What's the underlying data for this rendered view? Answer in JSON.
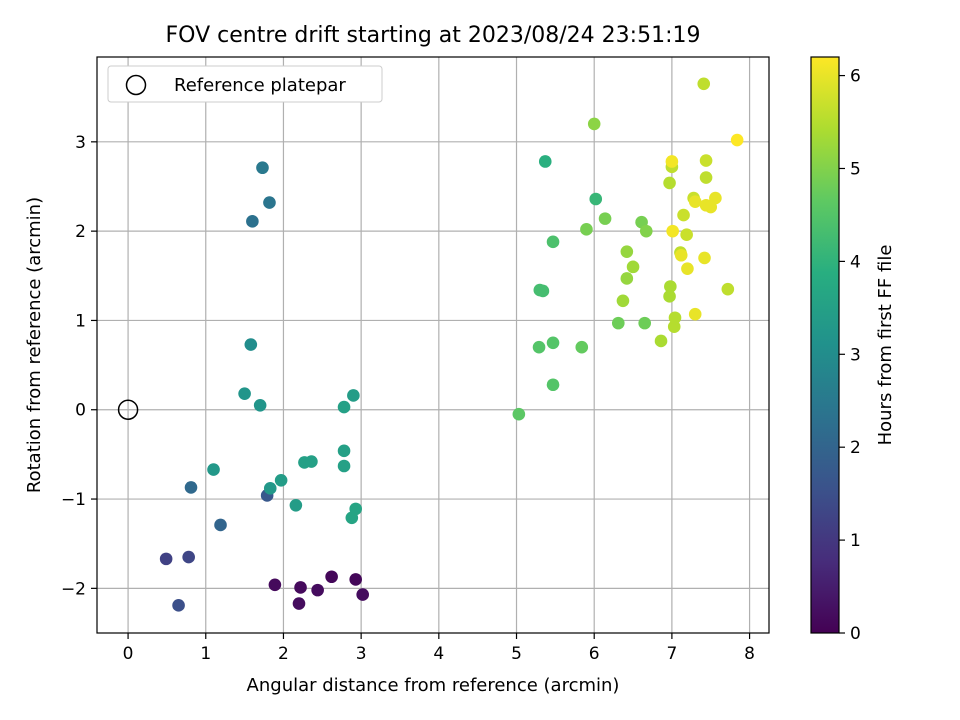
{
  "chart_data": {
    "type": "scatter",
    "title": "FOV centre drift starting at 2023/08/24 23:51:19",
    "xlabel": "Angular distance from reference (arcmin)",
    "ylabel": "Rotation from reference (arcmin)",
    "xlim": [
      -0.4,
      8.25
    ],
    "ylim": [
      -2.5,
      3.95
    ],
    "xticks": [
      0,
      1,
      2,
      3,
      4,
      5,
      6,
      7,
      8
    ],
    "yticks": [
      -2,
      -1,
      0,
      1,
      2,
      3
    ],
    "grid": true,
    "legend": {
      "placement": "top-left",
      "entries": [
        "Reference platepar"
      ]
    },
    "reference_point": {
      "x": 0,
      "y": 0
    },
    "colorbar": {
      "label": "Hours from first FF file",
      "range": [
        0,
        6.2
      ],
      "ticks": [
        0,
        1,
        2,
        3,
        4,
        5,
        6
      ],
      "colormap": "viridis"
    },
    "points": [
      {
        "x": 2.62,
        "y": -1.87,
        "c": 0.1
      },
      {
        "x": 2.93,
        "y": -1.9,
        "c": 0.1
      },
      {
        "x": 2.22,
        "y": -1.99,
        "c": 0.15
      },
      {
        "x": 1.89,
        "y": -1.96,
        "c": 0.15
      },
      {
        "x": 2.44,
        "y": -2.02,
        "c": 0.2
      },
      {
        "x": 2.2,
        "y": -2.17,
        "c": 0.2
      },
      {
        "x": 3.02,
        "y": -2.07,
        "c": 0.2
      },
      {
        "x": 0.49,
        "y": -1.67,
        "c": 1.2
      },
      {
        "x": 0.78,
        "y": -1.65,
        "c": 1.3
      },
      {
        "x": 0.65,
        "y": -2.19,
        "c": 1.5
      },
      {
        "x": 1.79,
        "y": -0.96,
        "c": 1.7
      },
      {
        "x": 1.19,
        "y": -1.29,
        "c": 2.0
      },
      {
        "x": 0.81,
        "y": -0.87,
        "c": 2.1
      },
      {
        "x": 1.6,
        "y": 2.11,
        "c": 2.3
      },
      {
        "x": 1.82,
        "y": 2.32,
        "c": 2.4
      },
      {
        "x": 1.73,
        "y": 2.71,
        "c": 2.5
      },
      {
        "x": 1.58,
        "y": 0.73,
        "c": 3.0
      },
      {
        "x": 1.5,
        "y": 0.18,
        "c": 3.2
      },
      {
        "x": 1.7,
        "y": 0.05,
        "c": 3.2
      },
      {
        "x": 1.1,
        "y": -0.67,
        "c": 3.3
      },
      {
        "x": 1.83,
        "y": -0.88,
        "c": 3.3
      },
      {
        "x": 1.97,
        "y": -0.79,
        "c": 3.4
      },
      {
        "x": 2.16,
        "y": -1.07,
        "c": 3.4
      },
      {
        "x": 2.27,
        "y": -0.59,
        "c": 3.5
      },
      {
        "x": 2.36,
        "y": -0.58,
        "c": 3.5
      },
      {
        "x": 2.78,
        "y": -0.46,
        "c": 3.5
      },
      {
        "x": 2.78,
        "y": -0.63,
        "c": 3.5
      },
      {
        "x": 2.88,
        "y": -1.21,
        "c": 3.6
      },
      {
        "x": 2.93,
        "y": -1.11,
        "c": 3.6
      },
      {
        "x": 2.78,
        "y": 0.03,
        "c": 3.5
      },
      {
        "x": 2.9,
        "y": 0.16,
        "c": 3.4
      },
      {
        "x": 5.37,
        "y": 2.78,
        "c": 3.9
      },
      {
        "x": 6.02,
        "y": 2.36,
        "c": 4.1
      },
      {
        "x": 5.3,
        "y": 1.34,
        "c": 4.3
      },
      {
        "x": 5.34,
        "y": 1.33,
        "c": 4.3
      },
      {
        "x": 5.47,
        "y": 1.88,
        "c": 4.4
      },
      {
        "x": 5.29,
        "y": 0.7,
        "c": 4.5
      },
      {
        "x": 5.47,
        "y": 0.75,
        "c": 4.5
      },
      {
        "x": 5.47,
        "y": 0.28,
        "c": 4.5
      },
      {
        "x": 5.03,
        "y": -0.05,
        "c": 4.6
      },
      {
        "x": 5.84,
        "y": 0.7,
        "c": 4.7
      },
      {
        "x": 6.31,
        "y": 0.97,
        "c": 4.8
      },
      {
        "x": 6.65,
        "y": 0.97,
        "c": 4.8
      },
      {
        "x": 5.9,
        "y": 2.02,
        "c": 4.9
      },
      {
        "x": 6.14,
        "y": 2.14,
        "c": 4.9
      },
      {
        "x": 6.61,
        "y": 2.1,
        "c": 4.9
      },
      {
        "x": 6.67,
        "y": 2.0,
        "c": 5.0
      },
      {
        "x": 6.0,
        "y": 3.2,
        "c": 5.1
      },
      {
        "x": 6.42,
        "y": 1.77,
        "c": 5.2
      },
      {
        "x": 6.42,
        "y": 1.47,
        "c": 5.2
      },
      {
        "x": 6.5,
        "y": 1.6,
        "c": 5.3
      },
      {
        "x": 6.37,
        "y": 1.22,
        "c": 5.3
      },
      {
        "x": 6.86,
        "y": 0.77,
        "c": 5.4
      },
      {
        "x": 6.98,
        "y": 1.38,
        "c": 5.4
      },
      {
        "x": 6.97,
        "y": 1.27,
        "c": 5.4
      },
      {
        "x": 7.03,
        "y": 0.93,
        "c": 5.5
      },
      {
        "x": 7.04,
        "y": 1.03,
        "c": 5.5
      },
      {
        "x": 6.97,
        "y": 2.54,
        "c": 5.5
      },
      {
        "x": 7.0,
        "y": 2.72,
        "c": 5.6
      },
      {
        "x": 7.41,
        "y": 3.65,
        "c": 5.6
      },
      {
        "x": 7.11,
        "y": 1.76,
        "c": 5.6
      },
      {
        "x": 7.19,
        "y": 1.96,
        "c": 5.7
      },
      {
        "x": 7.15,
        "y": 2.18,
        "c": 5.7
      },
      {
        "x": 7.28,
        "y": 2.37,
        "c": 5.7
      },
      {
        "x": 7.44,
        "y": 2.6,
        "c": 5.6
      },
      {
        "x": 7.44,
        "y": 2.79,
        "c": 5.7
      },
      {
        "x": 7.72,
        "y": 1.35,
        "c": 5.6
      },
      {
        "x": 7.0,
        "y": 2.78,
        "c": 6.1
      },
      {
        "x": 7.01,
        "y": 2.0,
        "c": 6.1
      },
      {
        "x": 7.12,
        "y": 1.73,
        "c": 6.0
      },
      {
        "x": 7.2,
        "y": 1.58,
        "c": 6.0
      },
      {
        "x": 7.3,
        "y": 1.07,
        "c": 6.0
      },
      {
        "x": 7.3,
        "y": 2.33,
        "c": 6.0
      },
      {
        "x": 7.42,
        "y": 1.7,
        "c": 6.0
      },
      {
        "x": 7.44,
        "y": 2.29,
        "c": 6.0
      },
      {
        "x": 7.5,
        "y": 2.27,
        "c": 6.0
      },
      {
        "x": 7.56,
        "y": 2.37,
        "c": 6.0
      },
      {
        "x": 7.84,
        "y": 3.02,
        "c": 6.2
      }
    ]
  }
}
